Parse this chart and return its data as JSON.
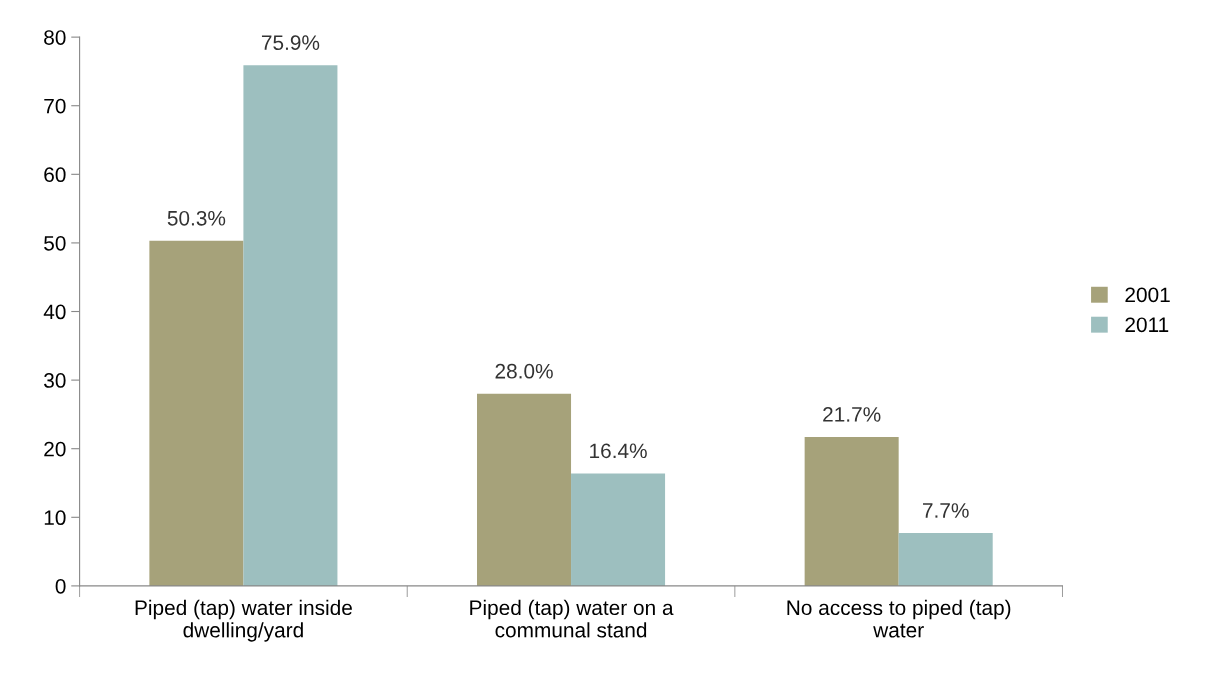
{
  "chart_data": {
    "type": "bar",
    "categories": [
      "Piped (tap) water inside\ndwelling/yard",
      "Piped (tap) water on a\ncommunal stand",
      "No access to piped (tap)\nwater"
    ],
    "series": [
      {
        "name": "2001",
        "color": "#a6a27a",
        "values": [
          50.3,
          28.0,
          21.7
        ],
        "value_labels": [
          "50.3%",
          "28.0%",
          "21.7%"
        ]
      },
      {
        "name": "2011",
        "color": "#9dbfbf",
        "values": [
          75.9,
          16.4,
          7.7
        ],
        "value_labels": [
          "75.9%",
          "16.4%",
          "7.7%"
        ]
      }
    ],
    "ylim": [
      0,
      80
    ],
    "yticks": [
      0,
      10,
      20,
      30,
      40,
      50,
      60,
      70,
      80
    ],
    "grid": false,
    "legend": "right"
  }
}
